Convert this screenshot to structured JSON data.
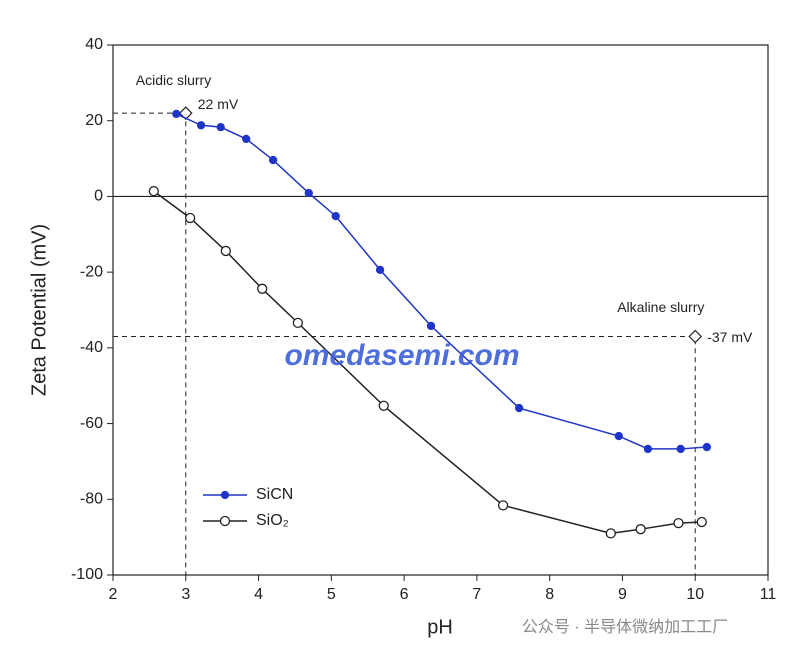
{
  "chart_data": {
    "type": "line",
    "x_label": "pH",
    "y_label": "Zeta Potential (mV)",
    "xlim": [
      2,
      11
    ],
    "ylim": [
      -100,
      40
    ],
    "xticks": [
      2,
      3,
      4,
      5,
      6,
      7,
      8,
      9,
      10,
      11
    ],
    "yticks": [
      -100,
      -80,
      -60,
      -40,
      -20,
      0,
      20,
      40
    ],
    "zero_line": true,
    "legend": "lower left",
    "series": [
      {
        "name": "SiCN",
        "color": "#1f35c8",
        "marker": "filled",
        "x": [
          2.87,
          3.21,
          3.48,
          3.83,
          4.2,
          4.69,
          5.06,
          5.67,
          6.37,
          7.58,
          8.95,
          9.35,
          9.8,
          10.16
        ],
        "values": [
          21.8,
          18.8,
          18.3,
          15.2,
          9.6,
          0.9,
          -5.2,
          -19.4,
          -34.2,
          -55.9,
          -63.3,
          -66.7,
          -66.7,
          -66.2
        ]
      },
      {
        "name": "SiO₂",
        "color": "#222222",
        "marker": "open",
        "x": [
          2.56,
          3.06,
          3.55,
          4.05,
          4.54,
          5.72,
          7.36,
          8.84,
          9.25,
          9.77,
          10.09
        ],
        "values": [
          1.4,
          -5.7,
          -14.4,
          -24.4,
          -33.4,
          -55.3,
          -81.6,
          -89,
          -87.9,
          -86.3,
          -86
        ]
      }
    ],
    "annotations": [
      {
        "title": "Acidic slurry",
        "label": "22 mV",
        "x": 3,
        "y": 22
      },
      {
        "title": "Alkaline slurry",
        "label": "-37 mV",
        "x": 10,
        "y": -37
      }
    ],
    "watermarks": [
      "omedasemi.com",
      "公众号 · 半导体微纳加工工厂"
    ]
  }
}
